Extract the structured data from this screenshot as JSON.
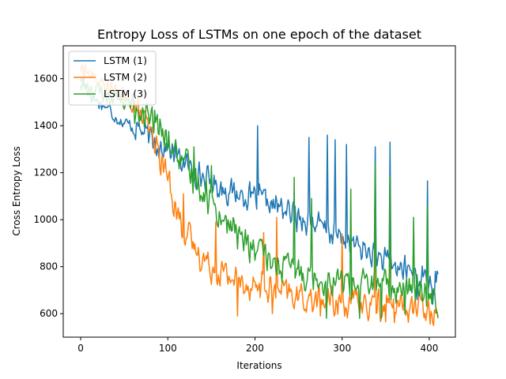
{
  "chart_data": {
    "type": "line",
    "title": "Entropy Loss of LSTMs on one epoch of the dataset",
    "xlabel": "Iterations",
    "ylabel": "Cross Entropy Loss",
    "xlim": [
      -20,
      430
    ],
    "ylim": [
      500,
      1740
    ],
    "x_ticks": [
      0,
      100,
      200,
      300,
      400
    ],
    "y_ticks": [
      600,
      800,
      1000,
      1200,
      1400,
      1600
    ],
    "grid": false,
    "legend_position": "top-left",
    "n_points": 411,
    "series": [
      {
        "name": "LSTM (1)",
        "color": "#1f77b4",
        "keyframes": [
          [
            0,
            1600
          ],
          [
            10,
            1540
          ],
          [
            20,
            1500
          ],
          [
            30,
            1480
          ],
          [
            40,
            1440
          ],
          [
            50,
            1410
          ],
          [
            60,
            1400
          ],
          [
            70,
            1380
          ],
          [
            80,
            1340
          ],
          [
            90,
            1320
          ],
          [
            100,
            1300
          ],
          [
            110,
            1270
          ],
          [
            120,
            1240
          ],
          [
            130,
            1200
          ],
          [
            140,
            1180
          ],
          [
            150,
            1160
          ],
          [
            160,
            1140
          ],
          [
            170,
            1120
          ],
          [
            180,
            1110
          ],
          [
            190,
            1100
          ],
          [
            200,
            1090
          ],
          [
            210,
            1080
          ],
          [
            220,
            1060
          ],
          [
            230,
            1050
          ],
          [
            240,
            1030
          ],
          [
            250,
            1010
          ],
          [
            260,
            1000
          ],
          [
            270,
            980
          ],
          [
            280,
            960
          ],
          [
            290,
            940
          ],
          [
            300,
            920
          ],
          [
            310,
            900
          ],
          [
            320,
            880
          ],
          [
            330,
            860
          ],
          [
            340,
            840
          ],
          [
            350,
            820
          ],
          [
            360,
            800
          ],
          [
            370,
            790
          ],
          [
            380,
            780
          ],
          [
            390,
            760
          ],
          [
            400,
            740
          ],
          [
            410,
            720
          ]
        ],
        "noise": 70,
        "spikes": [
          [
            203,
            1400
          ],
          [
            262,
            1350
          ],
          [
            283,
            1360
          ],
          [
            292,
            1340
          ],
          [
            305,
            1320
          ],
          [
            338,
            1310
          ],
          [
            355,
            1330
          ],
          [
            398,
            1165
          ],
          [
            407,
            780
          ]
        ],
        "dips": [
          [
            386,
            660
          ],
          [
            404,
            640
          ]
        ]
      },
      {
        "name": "LSTM (2)",
        "color": "#ff7f0e",
        "keyframes": [
          [
            0,
            1640
          ],
          [
            10,
            1620
          ],
          [
            20,
            1590
          ],
          [
            30,
            1560
          ],
          [
            40,
            1540
          ],
          [
            50,
            1520
          ],
          [
            60,
            1490
          ],
          [
            70,
            1440
          ],
          [
            80,
            1360
          ],
          [
            90,
            1280
          ],
          [
            100,
            1180
          ],
          [
            110,
            1040
          ],
          [
            120,
            950
          ],
          [
            130,
            880
          ],
          [
            140,
            840
          ],
          [
            150,
            800
          ],
          [
            160,
            780
          ],
          [
            170,
            760
          ],
          [
            180,
            740
          ],
          [
            190,
            730
          ],
          [
            200,
            720
          ],
          [
            210,
            710
          ],
          [
            220,
            700
          ],
          [
            230,
            690
          ],
          [
            240,
            680
          ],
          [
            250,
            670
          ],
          [
            260,
            665
          ],
          [
            270,
            660
          ],
          [
            280,
            655
          ],
          [
            290,
            650
          ],
          [
            300,
            648
          ],
          [
            310,
            645
          ],
          [
            320,
            642
          ],
          [
            330,
            640
          ],
          [
            340,
            638
          ],
          [
            350,
            636
          ],
          [
            360,
            634
          ],
          [
            370,
            632
          ],
          [
            380,
            630
          ],
          [
            390,
            628
          ],
          [
            400,
            626
          ],
          [
            410,
            620
          ]
        ],
        "noise": 80,
        "spikes": [
          [
            5,
            1665
          ],
          [
            118,
            1110
          ],
          [
            155,
            990
          ],
          [
            210,
            945
          ],
          [
            225,
            1010
          ],
          [
            300,
            940
          ],
          [
            338,
            1160
          ],
          [
            355,
            1130
          ]
        ],
        "dips": [
          [
            180,
            590
          ],
          [
            220,
            600
          ],
          [
            275,
            590
          ],
          [
            330,
            570
          ],
          [
            350,
            565
          ],
          [
            360,
            562
          ],
          [
            410,
            580
          ]
        ]
      },
      {
        "name": "LSTM (3)",
        "color": "#2ca02c",
        "keyframes": [
          [
            0,
            1580
          ],
          [
            10,
            1560
          ],
          [
            20,
            1545
          ],
          [
            30,
            1530
          ],
          [
            40,
            1520
          ],
          [
            50,
            1500
          ],
          [
            60,
            1480
          ],
          [
            70,
            1460
          ],
          [
            80,
            1420
          ],
          [
            90,
            1380
          ],
          [
            100,
            1330
          ],
          [
            110,
            1280
          ],
          [
            120,
            1230
          ],
          [
            130,
            1180
          ],
          [
            140,
            1130
          ],
          [
            150,
            1080
          ],
          [
            160,
            1020
          ],
          [
            170,
            980
          ],
          [
            180,
            940
          ],
          [
            190,
            900
          ],
          [
            200,
            870
          ],
          [
            210,
            840
          ],
          [
            220,
            820
          ],
          [
            230,
            800
          ],
          [
            240,
            790
          ],
          [
            250,
            780
          ],
          [
            260,
            770
          ],
          [
            270,
            760
          ],
          [
            280,
            750
          ],
          [
            290,
            745
          ],
          [
            300,
            740
          ],
          [
            310,
            735
          ],
          [
            320,
            730
          ],
          [
            330,
            725
          ],
          [
            340,
            720
          ],
          [
            350,
            715
          ],
          [
            360,
            710
          ],
          [
            370,
            705
          ],
          [
            380,
            700
          ],
          [
            390,
            695
          ],
          [
            400,
            690
          ],
          [
            410,
            670
          ]
        ],
        "noise": 85,
        "spikes": [
          [
            85,
            1465
          ],
          [
            130,
            1310
          ],
          [
            150,
            1230
          ],
          [
            245,
            1180
          ],
          [
            265,
            1090
          ],
          [
            310,
            1130
          ],
          [
            338,
            1240
          ],
          [
            355,
            1185
          ],
          [
            382,
            1010
          ],
          [
            398,
            1060
          ]
        ],
        "dips": [
          [
            282,
            580
          ],
          [
            320,
            580
          ],
          [
            345,
            580
          ],
          [
            372,
            600
          ],
          [
            410,
            585
          ]
        ]
      }
    ]
  }
}
